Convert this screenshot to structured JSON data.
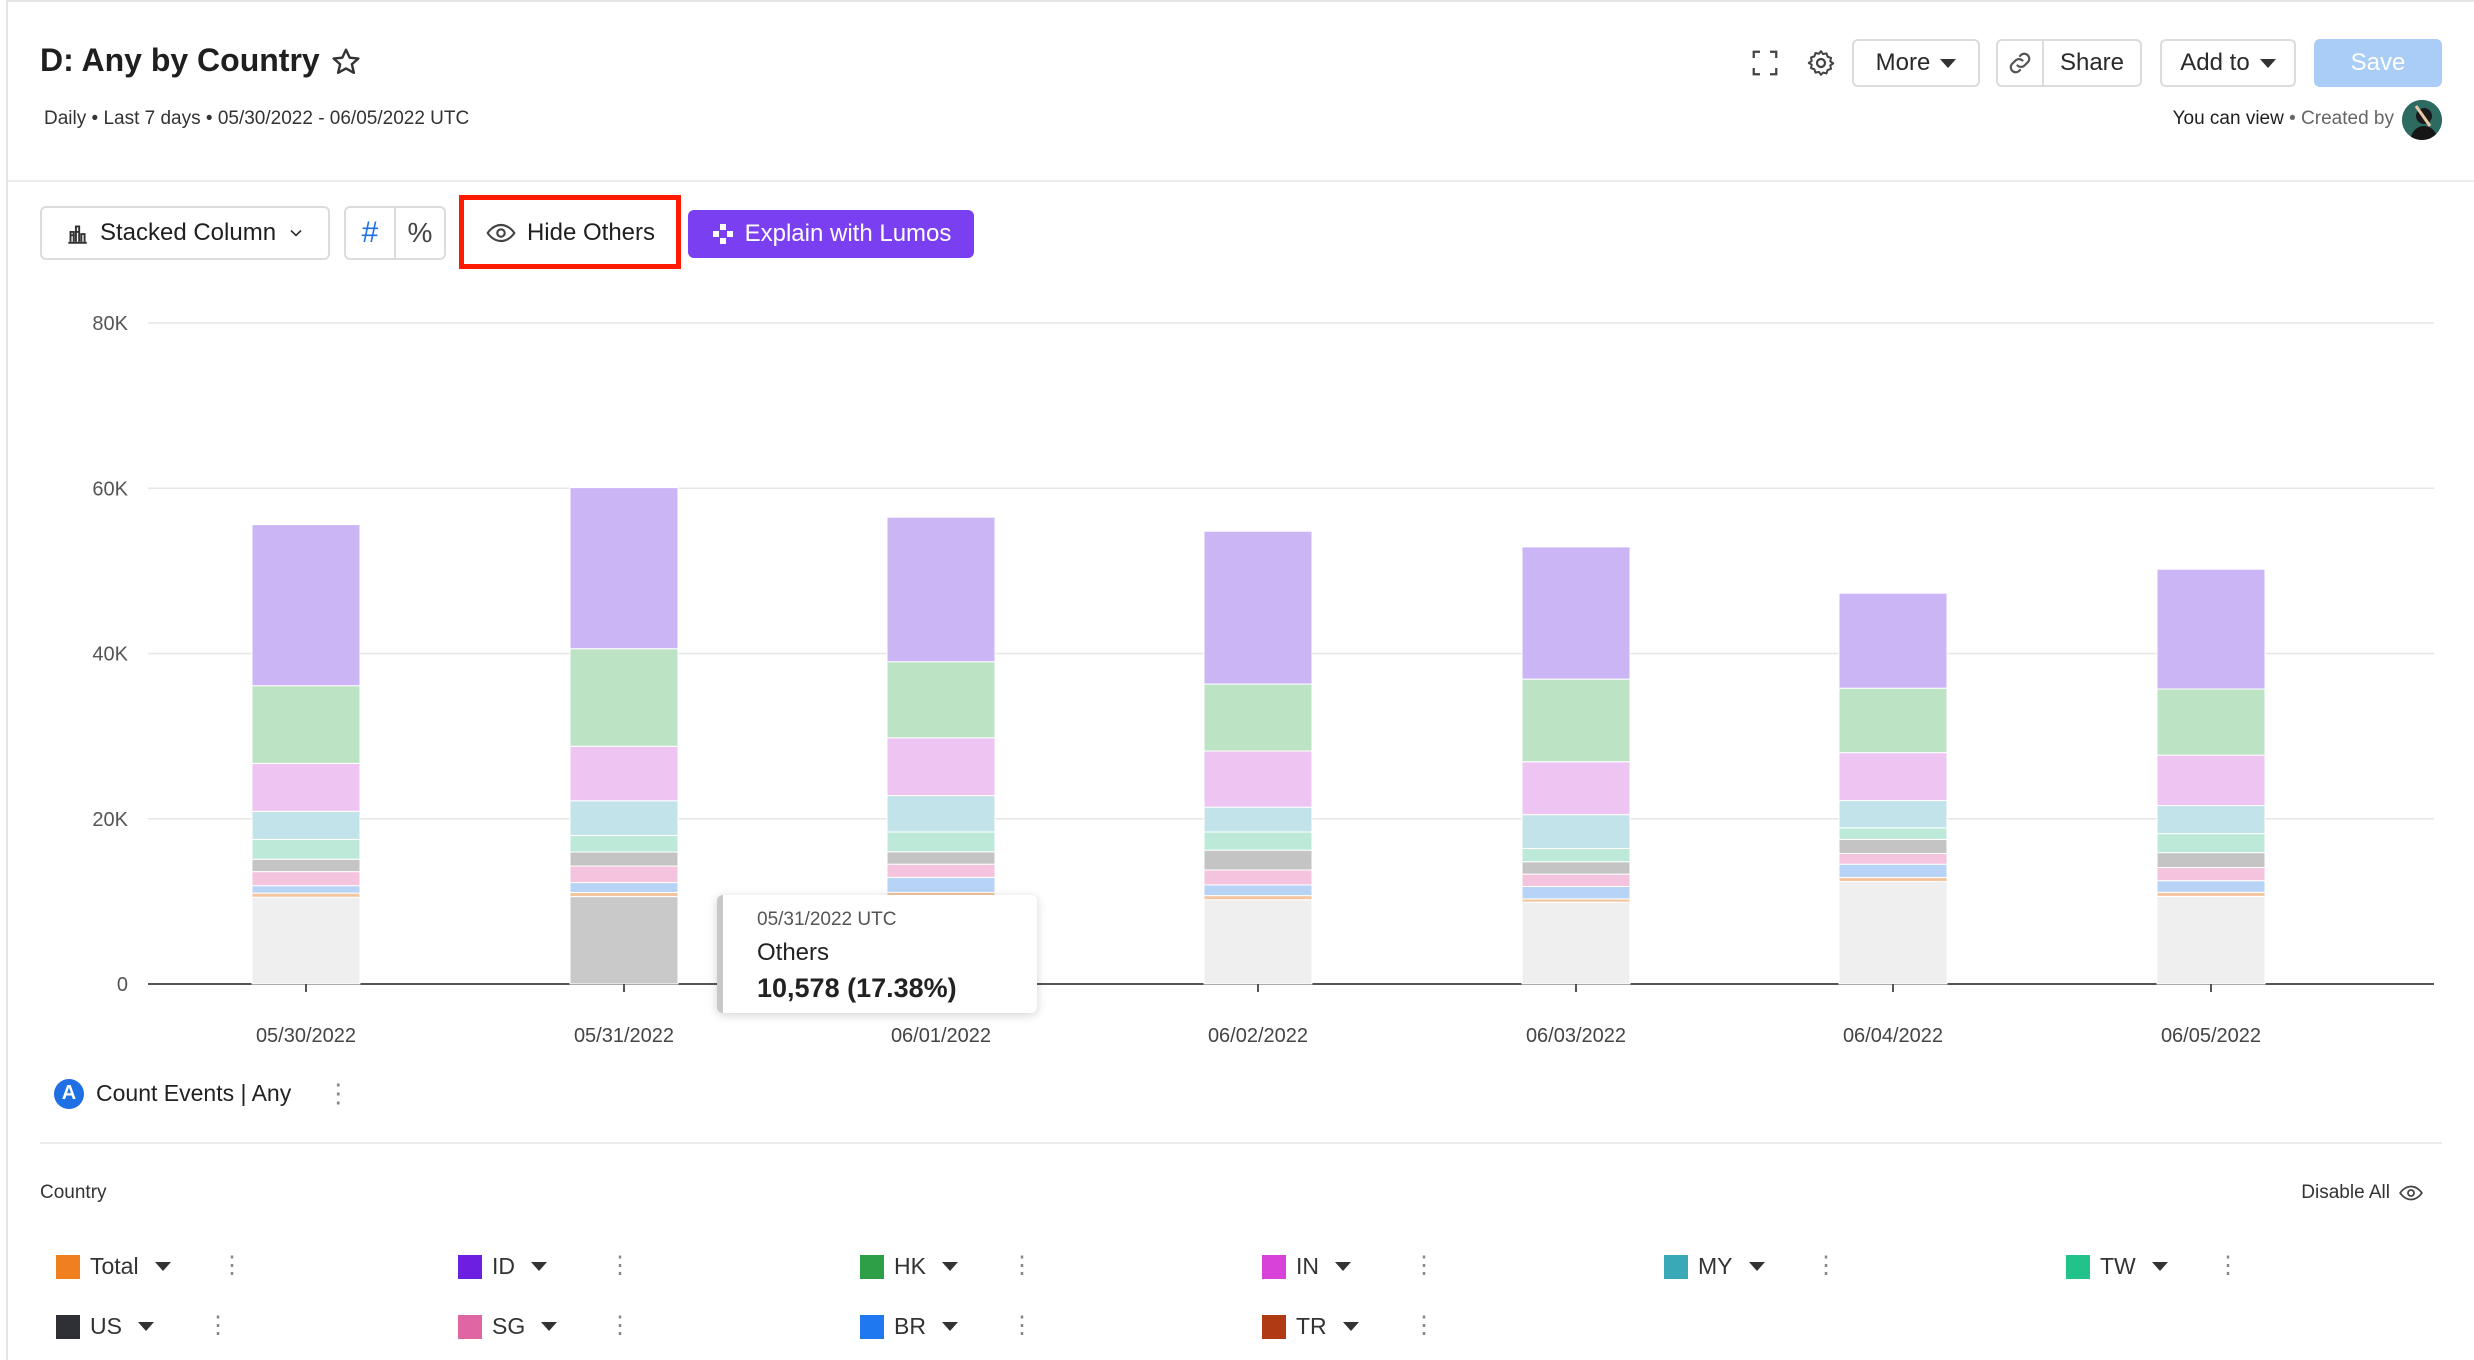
{
  "header": {
    "title": "D: Any by Country",
    "subtitle": "Daily • Last 7 days • 05/30/2022 - 06/05/2022 UTC",
    "more_label": "More",
    "share_label": "Share",
    "add_to_label": "Add to",
    "save_label": "Save",
    "permission_text": "You can view",
    "created_by_text": "• Created by"
  },
  "toolbar": {
    "chart_type_label": "Stacked Column",
    "count_toggle": "#",
    "percent_toggle": "%",
    "hide_others_label": "Hide Others",
    "lumos_label": "Explain with Lumos"
  },
  "tooltip": {
    "date": "05/31/2022 UTC",
    "label": "Others",
    "value": "10,578 (17.38%)"
  },
  "metric": {
    "badge": "A",
    "label": "Count Events | Any"
  },
  "legend": {
    "group_label": "Country",
    "disable_all_label": "Disable All",
    "items": [
      {
        "label": "Total",
        "color": "#f07f1e"
      },
      {
        "label": "ID",
        "color": "#6c1fe0"
      },
      {
        "label": "HK",
        "color": "#2e9e47"
      },
      {
        "label": "IN",
        "color": "#d842d8"
      },
      {
        "label": "MY",
        "color": "#39a9b8"
      },
      {
        "label": "TW",
        "color": "#22c38a"
      },
      {
        "label": "US",
        "color": "#2f2f36"
      },
      {
        "label": "SG",
        "color": "#e066a3"
      },
      {
        "label": "BR",
        "color": "#1f78f0"
      },
      {
        "label": "TR",
        "color": "#b03a13"
      }
    ]
  },
  "chart_data": {
    "type": "bar",
    "stacked": true,
    "categories": [
      "05/30/2022",
      "05/31/2022",
      "06/01/2022",
      "06/02/2022",
      "06/03/2022",
      "06/04/2022",
      "06/05/2022"
    ],
    "ylim": [
      0,
      80000
    ],
    "yticks": [
      "0",
      "20K",
      "40K",
      "60K",
      "80K"
    ],
    "ytick_values": [
      0,
      20000,
      40000,
      60000,
      80000
    ],
    "grid": true,
    "series": [
      {
        "color": "#efefef",
        "highlight_color": "#c9c9c9",
        "values": [
          10500,
          10578,
          10600,
          10200,
          9900,
          12400,
          10600
        ]
      },
      {
        "color": "#f3c6a0",
        "values": [
          500,
          500,
          500,
          500,
          400,
          500,
          500
        ]
      },
      {
        "color": "#b7d3f5",
        "values": [
          900,
          1200,
          1800,
          1300,
          1500,
          1600,
          1400
        ]
      },
      {
        "color": "#f4c3dd",
        "values": [
          1700,
          2000,
          1600,
          1800,
          1500,
          1300,
          1600
        ]
      },
      {
        "color": "#c4c4c4",
        "values": [
          1500,
          1700,
          1500,
          2400,
          1500,
          1700,
          1800
        ]
      },
      {
        "color": "#bce9d8",
        "values": [
          2400,
          2000,
          2400,
          2200,
          1600,
          1400,
          2300
        ]
      },
      {
        "color": "#c3e3ea",
        "values": [
          3400,
          4200,
          4400,
          3000,
          4100,
          3300,
          3400
        ]
      },
      {
        "color": "#eec4f2",
        "values": [
          5800,
          6600,
          7000,
          6800,
          6400,
          5800,
          6100
        ]
      },
      {
        "color": "#bde3c5",
        "values": [
          9400,
          11800,
          9200,
          8100,
          10000,
          7800,
          8000
        ]
      },
      {
        "color": "#ccb5f5",
        "values": [
          19500,
          19500,
          17500,
          18500,
          16000,
          11500,
          14500
        ]
      }
    ]
  }
}
